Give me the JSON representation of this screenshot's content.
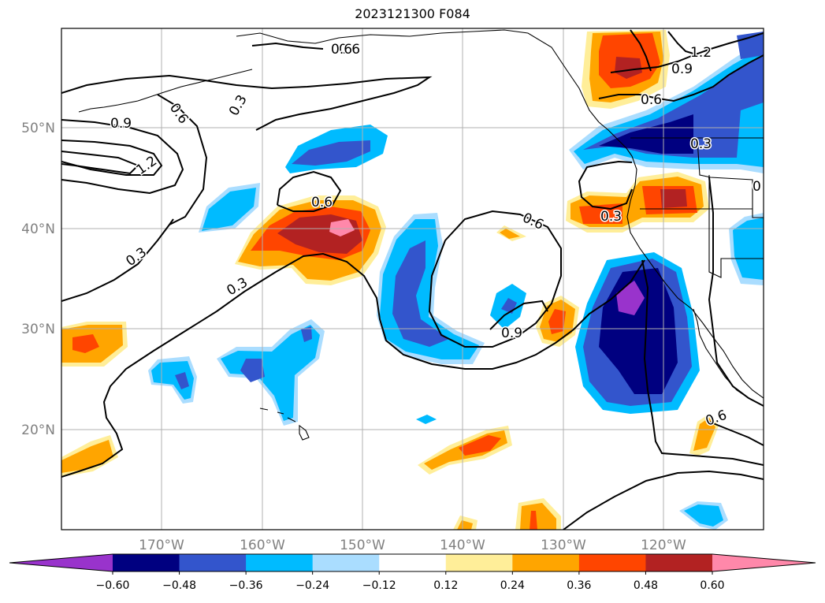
{
  "title": "2023121300 F084",
  "map": {
    "lon_ticks": [
      "170°W",
      "160°W",
      "150°W",
      "140°W",
      "130°W",
      "120°W"
    ],
    "lat_ticks": [
      "50°N",
      "40°N",
      "30°N",
      "20°N"
    ],
    "grid": true
  },
  "colorbar": {
    "ticks": [
      "−0.60",
      "−0.48",
      "−0.36",
      "−0.24",
      "−0.12",
      "0.12",
      "0.24",
      "0.36",
      "0.48",
      "0.60"
    ],
    "colors": [
      "#9933cc",
      "#000080",
      "#3355cc",
      "#00bbff",
      "#aaddff",
      "#ffffff",
      "#ffee99",
      "#ffa500",
      "#ff4500",
      "#b22222",
      "#ff88aa"
    ]
  },
  "contour_labels": [
    "0.6",
    "0.3",
    "0.9",
    "1.2",
    "0.6",
    "0.3",
    "0.6",
    "0.6",
    "0.9",
    "0.3",
    "1.2",
    "0.9",
    "0.6",
    "0.6",
    "0.3",
    "0.3",
    "0.6",
    "0"
  ],
  "fill_colors": {
    "pos1": "#ffee99",
    "pos2": "#ffa500",
    "pos3": "#ff4500",
    "pos4": "#b22222",
    "pos5": "#ff88aa",
    "neg1": "#aaddff",
    "neg2": "#00bbff",
    "neg3": "#3355cc",
    "neg4": "#000080",
    "neg5": "#9933cc"
  }
}
